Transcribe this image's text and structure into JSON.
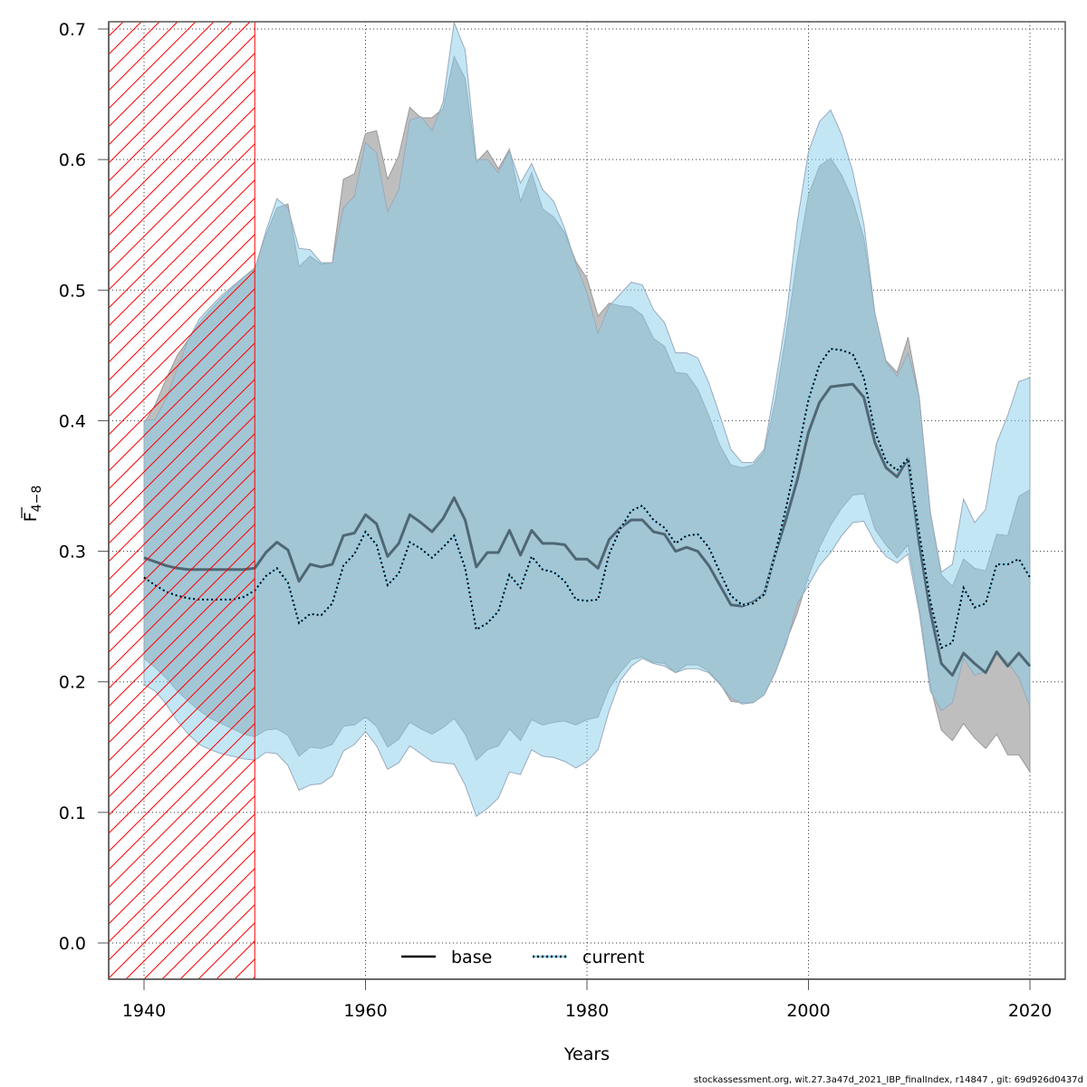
{
  "chart_data": {
    "type": "area",
    "title": "",
    "xlabel": "Years",
    "ylabel_main": "F",
    "ylabel_sub": "4−8",
    "xlim": [
      1936.5,
      2021.5
    ],
    "ylim": [
      -0.027,
      0.705
    ],
    "xticks": [
      1940,
      1960,
      1980,
      2000,
      2020
    ],
    "xtick_labels": [
      "1940",
      "1960",
      "1980",
      "2000",
      "2020"
    ],
    "yticks": [
      0.0,
      0.1,
      0.2,
      0.3,
      0.4,
      0.5,
      0.6,
      0.7
    ],
    "ytick_labels": [
      "0.0",
      "0.1",
      "0.2",
      "0.3",
      "0.4",
      "0.5",
      "0.6",
      "0.7"
    ],
    "grid": true,
    "legend_position": "bottom-center",
    "shaded_region": {
      "from": 1936.5,
      "to": 1950,
      "pattern": "hatched",
      "color": "#ff0000"
    },
    "x": [
      1940,
      1941,
      1942,
      1943,
      1944,
      1945,
      1946,
      1947,
      1948,
      1949,
      1950,
      1951,
      1952,
      1953,
      1954,
      1955,
      1956,
      1957,
      1958,
      1959,
      1960,
      1961,
      1962,
      1963,
      1964,
      1965,
      1966,
      1967,
      1968,
      1969,
      1970,
      1971,
      1972,
      1973,
      1974,
      1975,
      1976,
      1977,
      1978,
      1979,
      1980,
      1981,
      1982,
      1983,
      1984,
      1985,
      1986,
      1987,
      1988,
      1989,
      1990,
      1991,
      1992,
      1993,
      1994,
      1995,
      1996,
      1997,
      1998,
      1999,
      2000,
      2001,
      2002,
      2003,
      2004,
      2005,
      2006,
      2007,
      2008,
      2009,
      2010,
      2011,
      2012,
      2013,
      2014,
      2015,
      2016,
      2017,
      2018,
      2019,
      2020
    ],
    "series": [
      {
        "name": "base",
        "line_style": "solid",
        "color": "#000000",
        "band_color": "#bebebe",
        "values": [
          0.295,
          0.292,
          0.289,
          0.287,
          0.286,
          0.286,
          0.286,
          0.286,
          0.286,
          0.286,
          0.287,
          0.299,
          0.307,
          0.301,
          0.277,
          0.29,
          0.288,
          0.29,
          0.312,
          0.314,
          0.328,
          0.321,
          0.296,
          0.306,
          0.328,
          0.322,
          0.315,
          0.325,
          0.341,
          0.324,
          0.288,
          0.299,
          0.299,
          0.316,
          0.297,
          0.316,
          0.306,
          0.306,
          0.305,
          0.294,
          0.294,
          0.287,
          0.309,
          0.318,
          0.324,
          0.324,
          0.315,
          0.313,
          0.3,
          0.303,
          0.3,
          0.289,
          0.274,
          0.259,
          0.258,
          0.261,
          0.267,
          0.298,
          0.325,
          0.355,
          0.391,
          0.414,
          0.426,
          0.427,
          0.428,
          0.418,
          0.383,
          0.364,
          0.357,
          0.371,
          0.306,
          0.254,
          0.214,
          0.205,
          0.222,
          0.214,
          0.207,
          0.223,
          0.212,
          0.222,
          0.212
        ],
        "upper": [
          0.398,
          0.412,
          0.432,
          0.45,
          0.462,
          0.475,
          0.485,
          0.494,
          0.502,
          0.51,
          0.517,
          0.542,
          0.563,
          0.566,
          0.518,
          0.526,
          0.52,
          0.521,
          0.585,
          0.589,
          0.62,
          0.622,
          0.585,
          0.603,
          0.64,
          0.632,
          0.632,
          0.639,
          0.679,
          0.662,
          0.598,
          0.607,
          0.593,
          0.608,
          0.568,
          0.59,
          0.562,
          0.556,
          0.544,
          0.522,
          0.509,
          0.48,
          0.49,
          0.488,
          0.487,
          0.481,
          0.463,
          0.457,
          0.437,
          0.436,
          0.424,
          0.404,
          0.381,
          0.366,
          0.364,
          0.366,
          0.376,
          0.415,
          0.467,
          0.524,
          0.573,
          0.595,
          0.601,
          0.588,
          0.569,
          0.54,
          0.482,
          0.446,
          0.437,
          0.464,
          0.418,
          0.33,
          0.282,
          0.273,
          0.294,
          0.287,
          0.285,
          0.313,
          0.312,
          0.342,
          0.347
        ],
        "lower": [
          0.218,
          0.211,
          0.203,
          0.193,
          0.185,
          0.178,
          0.172,
          0.168,
          0.164,
          0.16,
          0.158,
          0.163,
          0.164,
          0.159,
          0.143,
          0.15,
          0.149,
          0.152,
          0.166,
          0.167,
          0.173,
          0.166,
          0.15,
          0.156,
          0.169,
          0.164,
          0.16,
          0.165,
          0.172,
          0.16,
          0.14,
          0.148,
          0.151,
          0.164,
          0.155,
          0.171,
          0.167,
          0.169,
          0.17,
          0.167,
          0.171,
          0.173,
          0.195,
          0.207,
          0.217,
          0.219,
          0.215,
          0.214,
          0.207,
          0.213,
          0.213,
          0.208,
          0.199,
          0.185,
          0.184,
          0.184,
          0.19,
          0.207,
          0.231,
          0.253,
          0.281,
          0.303,
          0.32,
          0.333,
          0.343,
          0.344,
          0.317,
          0.305,
          0.295,
          0.305,
          0.257,
          0.197,
          0.163,
          0.155,
          0.168,
          0.157,
          0.149,
          0.16,
          0.144,
          0.144,
          0.131
        ]
      },
      {
        "name": "current",
        "line_style": "dotted",
        "color": "#000000",
        "band_color": "#87ceeb",
        "values": [
          0.28,
          0.274,
          0.269,
          0.266,
          0.264,
          0.263,
          0.263,
          0.263,
          0.263,
          0.265,
          0.27,
          0.281,
          0.287,
          0.276,
          0.245,
          0.252,
          0.251,
          0.26,
          0.289,
          0.298,
          0.315,
          0.305,
          0.274,
          0.283,
          0.307,
          0.302,
          0.295,
          0.303,
          0.312,
          0.287,
          0.24,
          0.245,
          0.254,
          0.282,
          0.272,
          0.296,
          0.286,
          0.284,
          0.277,
          0.263,
          0.262,
          0.263,
          0.298,
          0.317,
          0.331,
          0.335,
          0.324,
          0.318,
          0.306,
          0.312,
          0.313,
          0.303,
          0.284,
          0.266,
          0.259,
          0.26,
          0.267,
          0.298,
          0.334,
          0.374,
          0.416,
          0.443,
          0.455,
          0.454,
          0.451,
          0.433,
          0.392,
          0.369,
          0.362,
          0.371,
          0.314,
          0.262,
          0.226,
          0.23,
          0.272,
          0.257,
          0.26,
          0.29,
          0.29,
          0.294,
          0.28
        ],
        "upper": [
          0.4,
          0.401,
          0.417,
          0.44,
          0.462,
          0.478,
          0.487,
          0.496,
          0.503,
          0.51,
          0.516,
          0.545,
          0.57,
          0.563,
          0.532,
          0.531,
          0.521,
          0.521,
          0.563,
          0.572,
          0.613,
          0.605,
          0.56,
          0.577,
          0.63,
          0.633,
          0.622,
          0.644,
          0.705,
          0.684,
          0.6,
          0.6,
          0.59,
          0.607,
          0.582,
          0.597,
          0.577,
          0.568,
          0.547,
          0.52,
          0.498,
          0.467,
          0.488,
          0.497,
          0.506,
          0.504,
          0.485,
          0.475,
          0.452,
          0.452,
          0.448,
          0.429,
          0.404,
          0.378,
          0.368,
          0.368,
          0.378,
          0.427,
          0.48,
          0.553,
          0.606,
          0.629,
          0.638,
          0.619,
          0.591,
          0.551,
          0.482,
          0.445,
          0.434,
          0.452,
          0.418,
          0.33,
          0.284,
          0.29,
          0.34,
          0.322,
          0.332,
          0.383,
          0.404,
          0.43,
          0.433
        ],
        "lower": [
          0.198,
          0.193,
          0.183,
          0.17,
          0.16,
          0.152,
          0.148,
          0.145,
          0.143,
          0.141,
          0.14,
          0.146,
          0.145,
          0.136,
          0.117,
          0.121,
          0.122,
          0.128,
          0.147,
          0.152,
          0.162,
          0.151,
          0.133,
          0.138,
          0.151,
          0.145,
          0.139,
          0.138,
          0.137,
          0.121,
          0.097,
          0.103,
          0.111,
          0.131,
          0.129,
          0.148,
          0.143,
          0.142,
          0.139,
          0.134,
          0.139,
          0.148,
          0.178,
          0.201,
          0.212,
          0.218,
          0.214,
          0.212,
          0.207,
          0.21,
          0.21,
          0.207,
          0.198,
          0.188,
          0.183,
          0.184,
          0.19,
          0.207,
          0.229,
          0.26,
          0.274,
          0.289,
          0.299,
          0.312,
          0.322,
          0.323,
          0.307,
          0.296,
          0.291,
          0.298,
          0.253,
          0.193,
          0.178,
          0.184,
          0.218,
          0.205,
          0.208,
          0.222,
          0.215,
          0.203,
          0.181
        ]
      }
    ],
    "legend": [
      {
        "label": "base",
        "line_style": "solid"
      },
      {
        "label": "current",
        "line_style": "dotted"
      }
    ]
  },
  "footer": "stockassessment.org, wit.27.3a47d_2021_IBP_finalIndex, r14847 , git: 69d926d0437d"
}
